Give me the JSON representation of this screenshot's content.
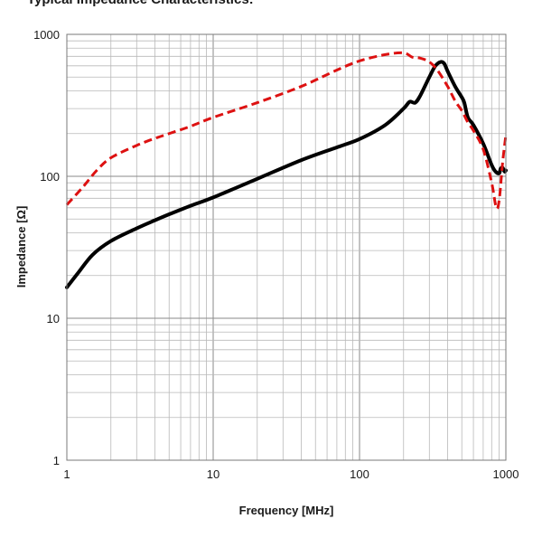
{
  "page": {
    "heading": "Typical Impedance Characteristics:"
  },
  "chart_data": {
    "type": "line",
    "title": "",
    "xlabel": "Frequency [MHz]",
    "ylabel": "Impedance [Ω]",
    "x_scale": "log",
    "y_scale": "log",
    "xlim": [
      1,
      1000
    ],
    "ylim": [
      1,
      1000
    ],
    "x_ticks": [
      {
        "value": 1,
        "label": "1"
      },
      {
        "value": 10,
        "label": "10"
      },
      {
        "value": 100,
        "label": "100"
      },
      {
        "value": 1000,
        "label": "1000"
      }
    ],
    "y_ticks": [
      {
        "value": 1,
        "label": "1"
      },
      {
        "value": 10,
        "label": "10"
      },
      {
        "value": 100,
        "label": "100"
      },
      {
        "value": 1000,
        "label": "1000"
      }
    ],
    "grid": true,
    "legend": "none",
    "series": [
      {
        "style": "solid",
        "color": "#000000",
        "points": [
          [
            1,
            16.5
          ],
          [
            1.2,
            21
          ],
          [
            1.5,
            28
          ],
          [
            2,
            35
          ],
          [
            3,
            43
          ],
          [
            4,
            49
          ],
          [
            5,
            54
          ],
          [
            7,
            62
          ],
          [
            10,
            71
          ],
          [
            20,
            96
          ],
          [
            40,
            130
          ],
          [
            70,
            160
          ],
          [
            100,
            183
          ],
          [
            150,
            230
          ],
          [
            200,
            300
          ],
          [
            220,
            335
          ],
          [
            240,
            330
          ],
          [
            260,
            370
          ],
          [
            300,
            500
          ],
          [
            330,
            600
          ],
          [
            360,
            640
          ],
          [
            380,
            620
          ],
          [
            400,
            550
          ],
          [
            450,
            430
          ],
          [
            500,
            360
          ],
          [
            520,
            330
          ],
          [
            550,
            260
          ],
          [
            600,
            230
          ],
          [
            700,
            170
          ],
          [
            800,
            120
          ],
          [
            850,
            108
          ],
          [
            900,
            105
          ],
          [
            920,
            113
          ],
          [
            950,
            115
          ],
          [
            980,
            108
          ],
          [
            1000,
            110
          ]
        ]
      },
      {
        "style": "dashed",
        "color": "#dd1111",
        "points": [
          [
            1,
            63
          ],
          [
            1.3,
            85
          ],
          [
            1.6,
            110
          ],
          [
            2,
            135
          ],
          [
            3,
            165
          ],
          [
            4,
            185
          ],
          [
            5,
            200
          ],
          [
            7,
            225
          ],
          [
            10,
            260
          ],
          [
            20,
            330
          ],
          [
            40,
            430
          ],
          [
            70,
            560
          ],
          [
            100,
            650
          ],
          [
            150,
            720
          ],
          [
            200,
            740
          ],
          [
            230,
            690
          ],
          [
            260,
            680
          ],
          [
            300,
            640
          ],
          [
            340,
            560
          ],
          [
            400,
            430
          ],
          [
            450,
            340
          ],
          [
            500,
            290
          ],
          [
            550,
            240
          ],
          [
            600,
            210
          ],
          [
            700,
            155
          ],
          [
            800,
            90
          ],
          [
            850,
            63
          ],
          [
            880,
            60
          ],
          [
            910,
            75
          ],
          [
            950,
            125
          ],
          [
            1000,
            195
          ]
        ]
      }
    ]
  }
}
